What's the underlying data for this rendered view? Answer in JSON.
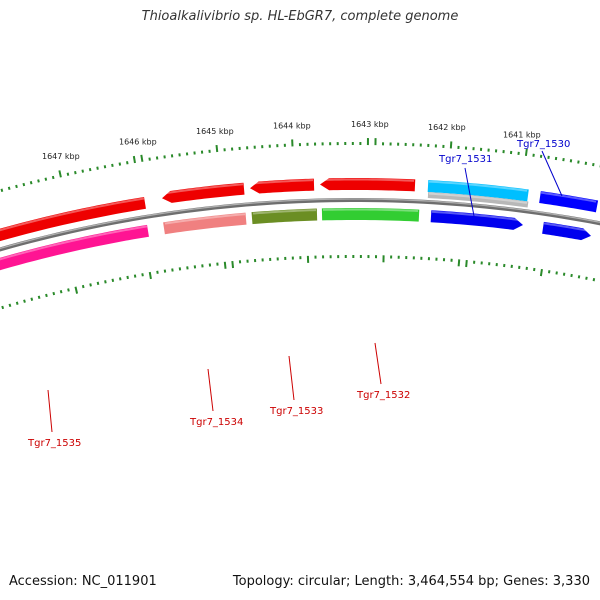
{
  "title": "Thioalkalivibrio sp. HL-EbGR7, complete genome",
  "footer": {
    "accession": "Accession: NC_011901",
    "summary": "Topology: circular; Length: 3,464,554 bp; Genes: 3,330"
  },
  "colors": {
    "backbone": "#888888",
    "tick": "#2a8a2a",
    "label_red": "#cc0000",
    "label_blue": "#0000cc"
  },
  "scale_labels": [
    "1647 kbp",
    "1646 kbp",
    "1645 kbp",
    "1644 kbp",
    "1643 kbp",
    "1642 kbp",
    "1641 kbp"
  ],
  "genes": [
    {
      "id": "Tgr7_1535",
      "color": "#ff1493",
      "label_color": "#cc0000"
    },
    {
      "id": "Tgr7_1534",
      "color": "#f08080",
      "label_color": "#cc0000"
    },
    {
      "id": "Tgr7_1533",
      "color": "#6b8e23",
      "label_color": "#cc0000"
    },
    {
      "id": "Tgr7_1532",
      "color": "#32cd32",
      "label_color": "#cc0000"
    },
    {
      "id": "Tgr7_1531",
      "color": "#00bfff",
      "label_color": "#0000cc"
    },
    {
      "id": "Tgr7_1530",
      "color": "#0000ff",
      "label_color": "#0000cc"
    }
  ]
}
